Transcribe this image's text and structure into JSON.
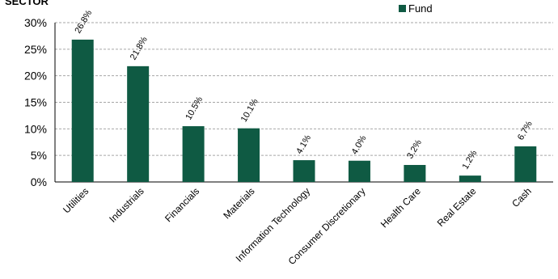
{
  "chart_data": {
    "type": "bar",
    "title": "SECTOR",
    "categories": [
      "Utilities",
      "Industrials",
      "Financials",
      "Materials",
      "Information Technology",
      "Consumer Discretionary",
      "Health Care",
      "Real Estate",
      "Cash"
    ],
    "series": [
      {
        "name": "Fund",
        "values": [
          26.8,
          21.8,
          10.5,
          10.1,
          4.1,
          4.0,
          3.2,
          1.2,
          6.7
        ],
        "color": "#0f5a43"
      }
    ],
    "data_labels": [
      "26.8%",
      "21.8%",
      "10.5%",
      "10.1%",
      "4.1%",
      "4.0%",
      "3.2%",
      "1.2%",
      "6.7%"
    ],
    "y_ticks": [
      "0%",
      "5%",
      "10%",
      "15%",
      "20%",
      "25%",
      "30%"
    ],
    "ylim": [
      0,
      30
    ],
    "grid": true,
    "legend_position": "top-right",
    "colors": {
      "bar": "#0f5a43",
      "grid": "#a6a6a6",
      "axis": "#000000"
    }
  }
}
